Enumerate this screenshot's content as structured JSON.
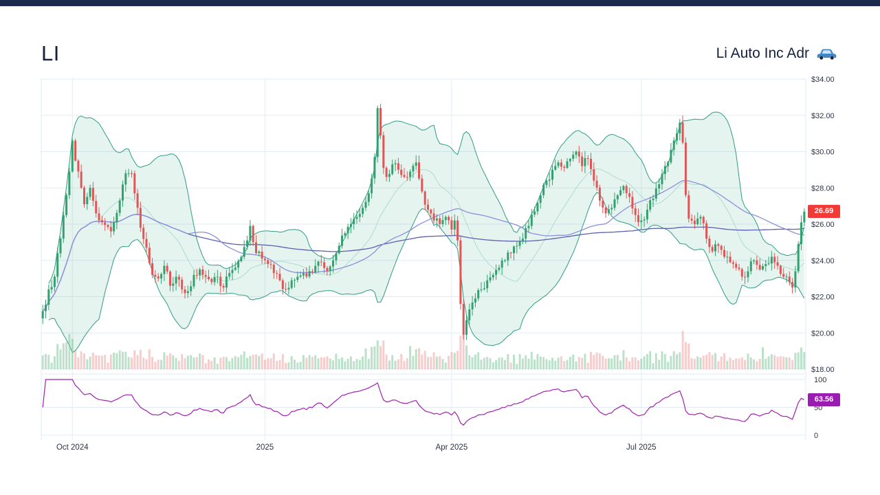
{
  "header": {
    "symbol": "LI",
    "company": "Li Auto Inc Adr"
  },
  "price_marker": {
    "value": "26.69"
  },
  "rsi_marker": {
    "value": "63.56"
  },
  "chart_data": {
    "type": "candlestick",
    "symbol": "LI",
    "title": "Li Auto Inc Adr",
    "ylim": [
      18,
      34
    ],
    "y_ticks": [
      {
        "v": 34,
        "label": "$34.00"
      },
      {
        "v": 32,
        "label": "$32.00"
      },
      {
        "v": 30,
        "label": "$30.00"
      },
      {
        "v": 28,
        "label": "$28.00"
      },
      {
        "v": 26,
        "label": "$26.00"
      },
      {
        "v": 24,
        "label": "$24.00"
      },
      {
        "v": 22,
        "label": "$22.00"
      },
      {
        "v": 20,
        "label": "$20.00"
      },
      {
        "v": 18,
        "label": "$18.00"
      }
    ],
    "x_ticks": [
      {
        "day": 10,
        "label": "Oct 2024"
      },
      {
        "day": 75,
        "label": "2025"
      },
      {
        "day": 138,
        "label": "Apr 2025"
      },
      {
        "day": 202,
        "label": "Jul 2025"
      }
    ],
    "rsi_ticks": [
      {
        "v": 100,
        "label": "100"
      },
      {
        "v": 50,
        "label": "50"
      },
      {
        "v": 0,
        "label": "0"
      }
    ],
    "days_total": 258,
    "last_price": 26.69,
    "rsi_last": 63.56,
    "noise_seed": 7,
    "indicators": {
      "bollinger_period": 20,
      "bollinger_mult": 2,
      "sma_fast": 50,
      "sma_slow": 200,
      "rsi_period": 14
    },
    "close_path": [
      [
        0,
        21.2
      ],
      [
        2,
        22.4
      ],
      [
        4,
        23.1
      ],
      [
        6,
        25.2
      ],
      [
        8,
        27.6
      ],
      [
        9,
        28.9
      ],
      [
        10,
        30.6
      ],
      [
        11,
        29.5
      ],
      [
        12,
        28.9
      ],
      [
        14,
        27.1
      ],
      [
        16,
        28.0
      ],
      [
        18,
        26.6
      ],
      [
        20,
        26.1
      ],
      [
        23,
        25.6
      ],
      [
        26,
        27.3
      ],
      [
        28,
        28.8
      ],
      [
        30,
        28.8
      ],
      [
        32,
        26.9
      ],
      [
        33,
        25.8
      ],
      [
        35,
        24.7
      ],
      [
        37,
        23.2
      ],
      [
        39,
        23.0
      ],
      [
        41,
        23.7
      ],
      [
        43,
        22.6
      ],
      [
        45,
        23.1
      ],
      [
        47,
        22.4
      ],
      [
        49,
        22.3
      ],
      [
        51,
        23.2
      ],
      [
        53,
        23.5
      ],
      [
        55,
        23.1
      ],
      [
        57,
        22.8
      ],
      [
        59,
        23.1
      ],
      [
        61,
        22.5
      ],
      [
        63,
        23.3
      ],
      [
        65,
        23.6
      ],
      [
        67,
        24.2
      ],
      [
        69,
        25.1
      ],
      [
        70,
        25.9
      ],
      [
        71,
        25.0
      ],
      [
        72,
        24.4
      ],
      [
        74,
        24.1
      ],
      [
        76,
        23.8
      ],
      [
        78,
        23.3
      ],
      [
        80,
        22.9
      ],
      [
        82,
        22.4
      ],
      [
        84,
        22.9
      ],
      [
        86,
        23.1
      ],
      [
        88,
        23.3
      ],
      [
        90,
        23.4
      ],
      [
        92,
        23.7
      ],
      [
        94,
        23.9
      ],
      [
        96,
        23.4
      ],
      [
        98,
        24.0
      ],
      [
        100,
        24.8
      ],
      [
        102,
        25.5
      ],
      [
        104,
        26.0
      ],
      [
        106,
        26.4
      ],
      [
        108,
        26.9
      ],
      [
        110,
        27.7
      ],
      [
        112,
        29.7
      ],
      [
        113,
        32.4
      ],
      [
        114,
        30.9
      ],
      [
        115,
        29.1
      ],
      [
        116,
        28.6
      ],
      [
        118,
        29.3
      ],
      [
        120,
        29.0
      ],
      [
        122,
        28.6
      ],
      [
        124,
        28.9
      ],
      [
        126,
        29.4
      ],
      [
        128,
        27.8
      ],
      [
        130,
        26.8
      ],
      [
        132,
        26.2
      ],
      [
        134,
        26.0
      ],
      [
        136,
        26.4
      ],
      [
        138,
        25.7
      ],
      [
        139,
        26.2
      ],
      [
        140,
        25.1
      ],
      [
        141,
        21.6
      ],
      [
        142,
        19.9
      ],
      [
        143,
        20.7
      ],
      [
        144,
        21.3
      ],
      [
        146,
        21.9
      ],
      [
        148,
        22.4
      ],
      [
        150,
        22.9
      ],
      [
        152,
        23.2
      ],
      [
        154,
        23.6
      ],
      [
        156,
        24.0
      ],
      [
        158,
        24.4
      ],
      [
        160,
        24.8
      ],
      [
        162,
        25.2
      ],
      [
        164,
        25.9
      ],
      [
        166,
        26.7
      ],
      [
        168,
        27.6
      ],
      [
        170,
        28.4
      ],
      [
        172,
        29.0
      ],
      [
        174,
        29.4
      ],
      [
        176,
        29.1
      ],
      [
        178,
        29.6
      ],
      [
        180,
        30.0
      ],
      [
        182,
        29.2
      ],
      [
        184,
        29.6
      ],
      [
        186,
        28.4
      ],
      [
        188,
        27.3
      ],
      [
        190,
        26.6
      ],
      [
        192,
        26.9
      ],
      [
        194,
        27.6
      ],
      [
        196,
        28.1
      ],
      [
        198,
        27.5
      ],
      [
        200,
        26.5
      ],
      [
        202,
        26.2
      ],
      [
        204,
        26.8
      ],
      [
        206,
        27.4
      ],
      [
        208,
        28.2
      ],
      [
        210,
        29.2
      ],
      [
        212,
        30.1
      ],
      [
        214,
        31.0
      ],
      [
        215,
        31.6
      ],
      [
        216,
        30.5
      ],
      [
        217,
        27.6
      ],
      [
        218,
        26.3
      ],
      [
        220,
        26.0
      ],
      [
        222,
        26.4
      ],
      [
        224,
        25.2
      ],
      [
        226,
        24.5
      ],
      [
        228,
        24.8
      ],
      [
        230,
        24.2
      ],
      [
        232,
        23.9
      ],
      [
        234,
        23.6
      ],
      [
        236,
        23.1
      ],
      [
        238,
        23.4
      ],
      [
        240,
        24.0
      ],
      [
        242,
        23.5
      ],
      [
        244,
        23.8
      ],
      [
        246,
        24.2
      ],
      [
        248,
        23.7
      ],
      [
        250,
        23.1
      ],
      [
        252,
        22.8
      ],
      [
        253,
        22.5
      ],
      [
        254,
        23.4
      ],
      [
        255,
        24.9
      ],
      [
        256,
        26.1
      ],
      [
        257,
        26.69
      ]
    ],
    "volume_spikes": [
      [
        8,
        68
      ],
      [
        9,
        88
      ],
      [
        10,
        76
      ],
      [
        109,
        52
      ],
      [
        111,
        56
      ],
      [
        113,
        72
      ],
      [
        114,
        58
      ],
      [
        124,
        58
      ],
      [
        126,
        50
      ],
      [
        141,
        84
      ],
      [
        142,
        92
      ],
      [
        143,
        60
      ],
      [
        196,
        48
      ],
      [
        216,
        96
      ],
      [
        217,
        68
      ],
      [
        243,
        55
      ],
      [
        255,
        42
      ]
    ]
  },
  "colors": {
    "accent_topbar": "#1c2b4c",
    "title_text": "#15213f",
    "axis_text": "#2c3345",
    "grid": "#e1ebf5",
    "candle_up": "#33a06f",
    "candle_down": "#e05656",
    "volume_up": "rgba(121,196,150,0.5)",
    "volume_down": "rgba(238,156,156,0.5)",
    "bollinger_line": "#2f9c82",
    "bollinger_fill": "rgba(64,168,140,0.13)",
    "bollinger_mid": "#aedbcd",
    "sma_fast_color": "#8b90d8",
    "sma_slow_color": "#5a5fae",
    "rsi_line": "#a01fae",
    "price_badge_bg": "#f23b37",
    "rsi_badge_bg": "#9a1cb0",
    "car_icon_body": "#3e87c9",
    "car_icon_glass": "#cfe3f4",
    "car_icon_wheel": "#1d2742"
  }
}
